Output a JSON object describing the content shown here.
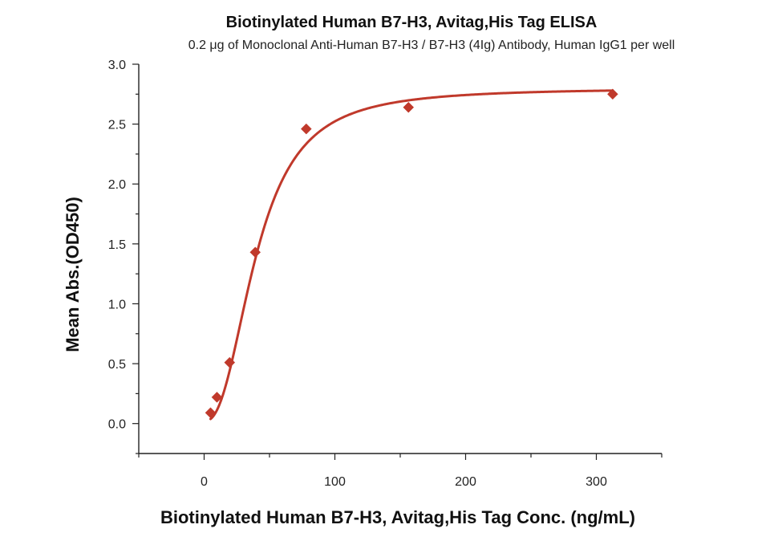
{
  "chart_data": {
    "type": "scatter",
    "title": "Biotinylated Human B7-H3, Avitag,His Tag ELISA",
    "subtitle": "0.2 μg of Monoclonal Anti-Human B7-H3 / B7-H3 (4Ig) Antibody, Human IgG1 per well",
    "xlabel": "Biotinylated Human B7-H3, Avitag,His Tag Conc. (ng/mL)",
    "ylabel": "Mean Abs.(OD450)",
    "xlim": [
      -50,
      350
    ],
    "ylim": [
      -0.25,
      3.0
    ],
    "x_ticks": [
      0,
      100,
      200,
      300
    ],
    "x_tick_labels": [
      "0",
      "100",
      "200",
      "300"
    ],
    "y_ticks": [
      0.0,
      0.5,
      1.0,
      1.5,
      2.0,
      2.5,
      3.0
    ],
    "y_tick_labels": [
      "0.0",
      "0.5",
      "1.0",
      "1.5",
      "2.0",
      "2.5",
      "3.0"
    ],
    "grid": false,
    "series": [
      {
        "color": "#c0392b",
        "marker": "diamond",
        "points": [
          {
            "x": 4.9,
            "y": 0.09
          },
          {
            "x": 9.8,
            "y": 0.22
          },
          {
            "x": 19.5,
            "y": 0.51
          },
          {
            "x": 39.1,
            "y": 1.43
          },
          {
            "x": 78.1,
            "y": 2.46
          },
          {
            "x": 156.3,
            "y": 2.64
          },
          {
            "x": 312.5,
            "y": 2.75
          }
        ],
        "fit": {
          "type": "4PL",
          "bottom": 0.02,
          "top": 2.8,
          "ec50": 40,
          "hill": 2.4
        }
      }
    ]
  }
}
